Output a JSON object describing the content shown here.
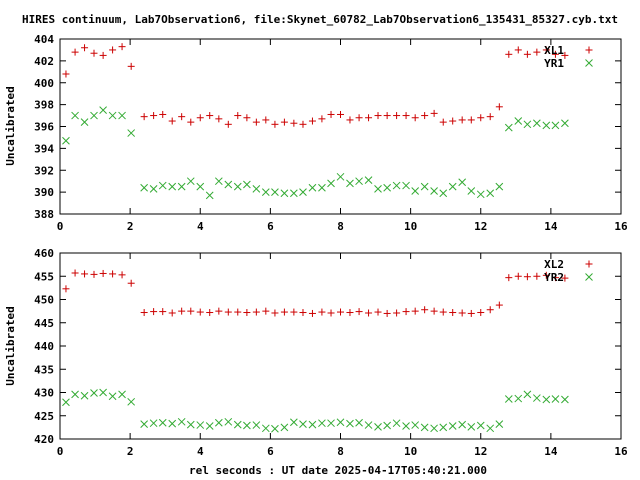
{
  "title": "HIRES continuum, Lab7Observation6, file:Skynet_60782_Lab7Observation6_135431_85327.cyb.txt",
  "xlabel": "rel seconds : UT date 2025-04-17T05:40:21.000",
  "colors": {
    "xl": "#cc0000",
    "yr": "#33aa33"
  },
  "chart_data": [
    {
      "type": "scatter",
      "ylabel": "Uncalibrated",
      "xlim": [
        0,
        16
      ],
      "ylim": [
        388,
        404
      ],
      "xticks": [
        "0",
        "2",
        "4",
        "6",
        "8",
        "10",
        "12",
        "14",
        "16"
      ],
      "yticks": [
        "388",
        "390",
        "392",
        "394",
        "396",
        "398",
        "400",
        "402",
        "404"
      ],
      "grid": false,
      "legend_position": "top-right",
      "series": [
        {
          "name": "XL1",
          "marker": "plus",
          "x": [
            0.17,
            0.43,
            0.7,
            0.97,
            1.23,
            1.5,
            1.77,
            2.03,
            2.4,
            2.67,
            2.93,
            3.2,
            3.47,
            3.73,
            4.0,
            4.27,
            4.53,
            4.8,
            5.07,
            5.33,
            5.6,
            5.87,
            6.13,
            6.4,
            6.67,
            6.93,
            7.2,
            7.47,
            7.73,
            8.0,
            8.27,
            8.53,
            8.8,
            9.07,
            9.33,
            9.6,
            9.87,
            10.13,
            10.4,
            10.67,
            10.93,
            11.2,
            11.47,
            11.73,
            12.0,
            12.27,
            12.53,
            12.8,
            13.07,
            13.33,
            13.6,
            13.87,
            14.13,
            14.4
          ],
          "y": [
            400.8,
            402.8,
            403.2,
            402.7,
            402.5,
            403.0,
            403.3,
            401.5,
            396.9,
            397.0,
            397.1,
            396.5,
            396.9,
            396.4,
            396.8,
            397.0,
            396.7,
            396.2,
            397.0,
            396.8,
            396.4,
            396.6,
            396.2,
            396.4,
            396.3,
            396.2,
            396.5,
            396.7,
            397.1,
            397.1,
            396.6,
            396.8,
            396.8,
            397.0,
            397.0,
            397.0,
            397.0,
            396.8,
            397.0,
            397.2,
            396.4,
            396.5,
            396.6,
            396.6,
            396.8,
            396.9,
            397.8,
            402.6,
            403.0,
            402.6,
            402.8,
            403.0,
            402.6,
            402.5
          ]
        },
        {
          "name": "YR1",
          "marker": "cross",
          "x": [
            0.17,
            0.43,
            0.7,
            0.97,
            1.23,
            1.5,
            1.77,
            2.03,
            2.4,
            2.67,
            2.93,
            3.2,
            3.47,
            3.73,
            4.0,
            4.27,
            4.53,
            4.8,
            5.07,
            5.33,
            5.6,
            5.87,
            6.13,
            6.4,
            6.67,
            6.93,
            7.2,
            7.47,
            7.73,
            8.0,
            8.27,
            8.53,
            8.8,
            9.07,
            9.33,
            9.6,
            9.87,
            10.13,
            10.4,
            10.67,
            10.93,
            11.2,
            11.47,
            11.73,
            12.0,
            12.27,
            12.53,
            12.8,
            13.07,
            13.33,
            13.6,
            13.87,
            14.13,
            14.4
          ],
          "y": [
            394.7,
            397.0,
            396.4,
            397.0,
            397.5,
            397.0,
            397.0,
            395.4,
            390.4,
            390.3,
            390.6,
            390.5,
            390.5,
            391.0,
            390.5,
            389.7,
            391.0,
            390.7,
            390.5,
            390.7,
            390.3,
            390.0,
            390.0,
            389.9,
            389.9,
            390.0,
            390.4,
            390.4,
            390.8,
            391.4,
            390.8,
            391.0,
            391.1,
            390.3,
            390.4,
            390.6,
            390.6,
            390.1,
            390.5,
            390.1,
            389.9,
            390.5,
            390.9,
            390.1,
            389.8,
            389.9,
            390.5,
            395.9,
            396.5,
            396.2,
            396.3,
            396.1,
            396.1,
            396.3
          ]
        }
      ]
    },
    {
      "type": "scatter",
      "ylabel": "Uncalibrated",
      "xlim": [
        0,
        16
      ],
      "ylim": [
        420,
        460
      ],
      "xticks": [
        "0",
        "2",
        "4",
        "6",
        "8",
        "10",
        "12",
        "14",
        "16"
      ],
      "yticks": [
        "420",
        "425",
        "430",
        "435",
        "440",
        "445",
        "450",
        "455",
        "460"
      ],
      "grid": false,
      "legend_position": "top-right",
      "series": [
        {
          "name": "XL2",
          "marker": "plus",
          "x": [
            0.17,
            0.43,
            0.7,
            0.97,
            1.23,
            1.5,
            1.77,
            2.03,
            2.4,
            2.67,
            2.93,
            3.2,
            3.47,
            3.73,
            4.0,
            4.27,
            4.53,
            4.8,
            5.07,
            5.33,
            5.6,
            5.87,
            6.13,
            6.4,
            6.67,
            6.93,
            7.2,
            7.47,
            7.73,
            8.0,
            8.27,
            8.53,
            8.8,
            9.07,
            9.33,
            9.6,
            9.87,
            10.13,
            10.4,
            10.67,
            10.93,
            11.2,
            11.47,
            11.73,
            12.0,
            12.27,
            12.53,
            12.8,
            13.07,
            13.33,
            13.6,
            13.87,
            14.13,
            14.4
          ],
          "y": [
            452.3,
            455.7,
            455.5,
            455.4,
            455.6,
            455.5,
            455.3,
            453.5,
            447.2,
            447.4,
            447.4,
            447.1,
            447.5,
            447.5,
            447.3,
            447.2,
            447.5,
            447.3,
            447.3,
            447.2,
            447.3,
            447.5,
            447.1,
            447.3,
            447.3,
            447.2,
            447.0,
            447.3,
            447.1,
            447.3,
            447.2,
            447.4,
            447.1,
            447.3,
            447.0,
            447.1,
            447.4,
            447.5,
            447.8,
            447.5,
            447.3,
            447.2,
            447.1,
            447.0,
            447.2,
            447.8,
            448.8,
            454.7,
            455.0,
            454.9,
            455.0,
            455.2,
            454.7,
            454.6
          ]
        },
        {
          "name": "YR2",
          "marker": "cross",
          "x": [
            0.17,
            0.43,
            0.7,
            0.97,
            1.23,
            1.5,
            1.77,
            2.03,
            2.4,
            2.67,
            2.93,
            3.2,
            3.47,
            3.73,
            4.0,
            4.27,
            4.53,
            4.8,
            5.07,
            5.33,
            5.6,
            5.87,
            6.13,
            6.4,
            6.67,
            6.93,
            7.2,
            7.47,
            7.73,
            8.0,
            8.27,
            8.53,
            8.8,
            9.07,
            9.33,
            9.6,
            9.87,
            10.13,
            10.4,
            10.67,
            10.93,
            11.2,
            11.47,
            11.73,
            12.0,
            12.27,
            12.53,
            12.8,
            13.07,
            13.33,
            13.6,
            13.87,
            14.13,
            14.4
          ],
          "y": [
            427.9,
            429.6,
            429.3,
            429.9,
            430.0,
            429.2,
            429.6,
            428.0,
            423.2,
            423.4,
            423.5,
            423.3,
            423.7,
            423.1,
            423.0,
            422.8,
            423.5,
            423.7,
            423.1,
            422.9,
            423.0,
            422.3,
            422.2,
            422.5,
            423.6,
            423.2,
            423.1,
            423.4,
            423.4,
            423.6,
            423.3,
            423.5,
            423.0,
            422.6,
            422.9,
            423.4,
            422.8,
            423.0,
            422.5,
            422.3,
            422.5,
            422.8,
            423.1,
            422.6,
            422.9,
            422.3,
            423.2,
            428.6,
            428.7,
            429.6,
            428.8,
            428.5,
            428.6,
            428.5
          ]
        }
      ]
    }
  ]
}
